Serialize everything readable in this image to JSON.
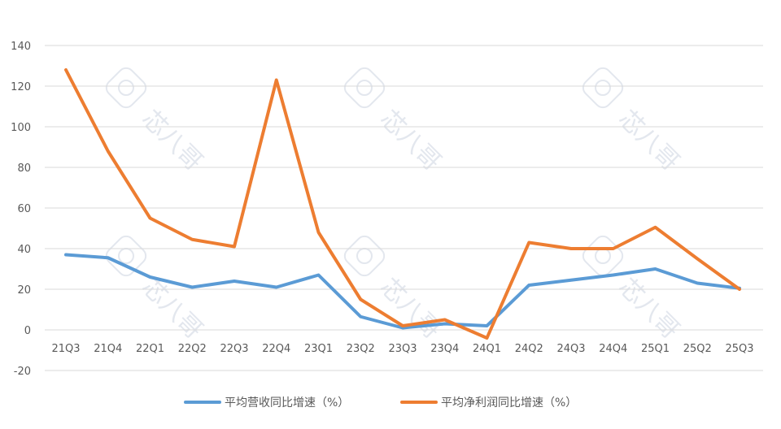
{
  "chart_data": {
    "type": "line",
    "categories": [
      "21Q3",
      "21Q4",
      "22Q1",
      "22Q2",
      "22Q3",
      "22Q4",
      "23Q1",
      "23Q2",
      "23Q3",
      "23Q4",
      "24Q1",
      "24Q2",
      "24Q3",
      "24Q4",
      "25Q1",
      "25Q2",
      "25Q3"
    ],
    "series": [
      {
        "name": "平均营收同比增速（%）",
        "color": "#5b9bd5",
        "values": [
          37,
          35.5,
          26,
          21,
          24,
          21,
          27,
          6.5,
          1,
          3,
          2,
          22,
          24.5,
          27,
          30,
          23,
          20.5
        ]
      },
      {
        "name": "平均净利润同比增速（%）",
        "color": "#ed7d31",
        "values": [
          128,
          88,
          55,
          44.5,
          41,
          123,
          48,
          15,
          2,
          5,
          -4,
          43,
          40,
          40,
          50.5,
          35,
          20
        ]
      }
    ],
    "ylim": [
      -20,
      140
    ],
    "yticks": [
      -20,
      0,
      20,
      40,
      60,
      80,
      100,
      120,
      140
    ],
    "grid": true,
    "legend_position": "bottom"
  },
  "watermark": {
    "text": "芯八哥"
  }
}
